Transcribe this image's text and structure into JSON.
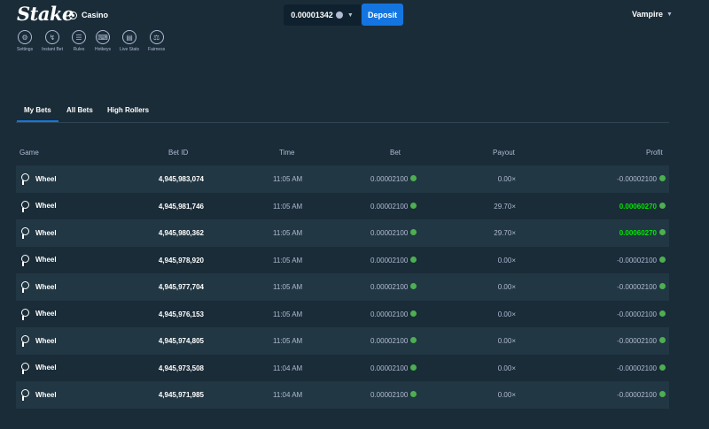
{
  "app": {
    "brand": "Stake",
    "section": "Casino"
  },
  "wallet": {
    "balance": "0.00001342",
    "deposit_label": "Deposit"
  },
  "user": {
    "name": "Vampire"
  },
  "toolbar": [
    {
      "label": "Settings",
      "icon": "settings-icon"
    },
    {
      "label": "Instant Bet",
      "icon": "lightning-icon"
    },
    {
      "label": "Rules",
      "icon": "rules-icon"
    },
    {
      "label": "Hotkeys",
      "icon": "keyboard-icon"
    },
    {
      "label": "Live Stats",
      "icon": "stats-icon"
    },
    {
      "label": "Fairness",
      "icon": "fairness-icon"
    }
  ],
  "tabs": [
    {
      "label": "My Bets",
      "active": true
    },
    {
      "label": "All Bets",
      "active": false
    },
    {
      "label": "High Rollers",
      "active": false
    }
  ],
  "table": {
    "headers": [
      "Game",
      "Bet ID",
      "Time",
      "Bet",
      "Payout",
      "Profit"
    ],
    "rows": [
      {
        "game": "Wheel",
        "bet_id": "4,945,983,074",
        "time": "11:05 AM",
        "bet": "0.00002100",
        "payout": "0.00×",
        "profit": "-0.00002100",
        "win": false
      },
      {
        "game": "Wheel",
        "bet_id": "4,945,981,746",
        "time": "11:05 AM",
        "bet": "0.00002100",
        "payout": "29.70×",
        "profit": "0.00060270",
        "win": true
      },
      {
        "game": "Wheel",
        "bet_id": "4,945,980,362",
        "time": "11:05 AM",
        "bet": "0.00002100",
        "payout": "29.70×",
        "profit": "0.00060270",
        "win": true
      },
      {
        "game": "Wheel",
        "bet_id": "4,945,978,920",
        "time": "11:05 AM",
        "bet": "0.00002100",
        "payout": "0.00×",
        "profit": "-0.00002100",
        "win": false
      },
      {
        "game": "Wheel",
        "bet_id": "4,945,977,704",
        "time": "11:05 AM",
        "bet": "0.00002100",
        "payout": "0.00×",
        "profit": "-0.00002100",
        "win": false
      },
      {
        "game": "Wheel",
        "bet_id": "4,945,976,153",
        "time": "11:05 AM",
        "bet": "0.00002100",
        "payout": "0.00×",
        "profit": "-0.00002100",
        "win": false
      },
      {
        "game": "Wheel",
        "bet_id": "4,945,974,805",
        "time": "11:05 AM",
        "bet": "0.00002100",
        "payout": "0.00×",
        "profit": "-0.00002100",
        "win": false
      },
      {
        "game": "Wheel",
        "bet_id": "4,945,973,508",
        "time": "11:04 AM",
        "bet": "0.00002100",
        "payout": "0.00×",
        "profit": "-0.00002100",
        "win": false
      },
      {
        "game": "Wheel",
        "bet_id": "4,945,971,985",
        "time": "11:04 AM",
        "bet": "0.00002100",
        "payout": "0.00×",
        "profit": "-0.00002100",
        "win": false
      }
    ]
  },
  "colors": {
    "background": "#1a2c38",
    "row_alt": "#213743",
    "accent": "#1475e1",
    "win": "#00e701",
    "text_muted": "#b1bad3"
  }
}
